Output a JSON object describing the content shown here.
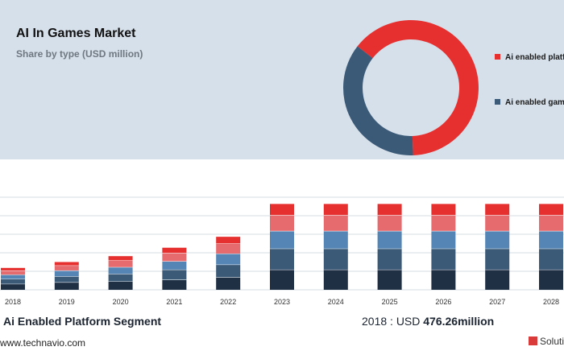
{
  "header": {
    "title": "AI In Games Market",
    "subtitle": "Share by type (USD million)"
  },
  "legend": [
    {
      "label": "Ai enabled platform",
      "color": "#e63030"
    },
    {
      "label": "Ai enabled games",
      "color": "#3b5a78"
    }
  ],
  "segment": {
    "label": "Ai Enabled Platform Segment",
    "stat_prefix": "2018 : USD",
    "stat_value": "476.26million"
  },
  "footer": {
    "source": "www.technavio.com",
    "brand": "Solutions"
  },
  "chart_data": [
    {
      "type": "pie",
      "variant": "donut",
      "series": [
        {
          "name": "Ai enabled platform",
          "value": 0.64,
          "color": "#e63030"
        },
        {
          "name": "Ai enabled games",
          "value": 0.36,
          "color": "#3b5a78"
        }
      ]
    },
    {
      "type": "bar",
      "stacked": true,
      "categories": [
        "2018",
        "2019",
        "2020",
        "2021",
        "2022",
        "2023",
        "2024",
        "2025",
        "2026",
        "2027",
        "2028"
      ],
      "ylim": [
        0,
        110
      ],
      "grid": true,
      "series": [
        {
          "color": "#1f2f44",
          "values": [
            7,
            9,
            10,
            12,
            15,
            24,
            24,
            24,
            24,
            24,
            24
          ]
        },
        {
          "color": "#3b5a78",
          "values": [
            6,
            7,
            9,
            12,
            15,
            25,
            25,
            25,
            25,
            25,
            25
          ]
        },
        {
          "color": "#5585b5",
          "values": [
            5,
            7,
            8,
            10,
            13,
            21,
            21,
            21,
            21,
            21,
            21
          ]
        },
        {
          "color": "#e56b6f",
          "values": [
            5,
            6,
            8,
            10,
            12,
            19,
            19,
            19,
            19,
            19,
            19
          ]
        },
        {
          "color": "#e63030",
          "values": [
            3,
            4,
            5,
            6,
            8,
            13,
            13,
            13,
            13,
            13,
            13
          ]
        }
      ]
    }
  ]
}
